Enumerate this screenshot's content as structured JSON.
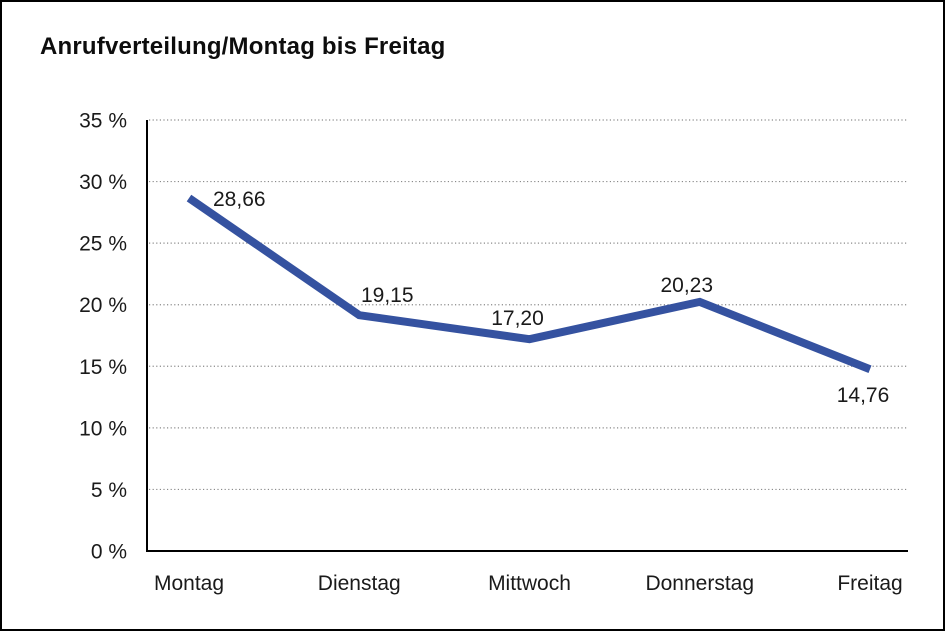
{
  "chart_data": {
    "type": "line",
    "title": "Anrufverteilung/Montag bis Freitag",
    "categories": [
      "Montag",
      "Dienstag",
      "Mittwoch",
      "Donnerstag",
      "Freitag"
    ],
    "series": [
      {
        "name": "Anrufverteilung",
        "values": [
          28.66,
          19.15,
          17.2,
          20.23,
          14.76
        ],
        "point_labels": [
          "28,66",
          "19,15",
          "17,20",
          "20,23",
          "14,76"
        ]
      }
    ],
    "xlabel": "",
    "ylabel": "",
    "ylim": [
      0,
      35
    ],
    "ytick_step": 5,
    "ytick_labels": [
      "0 %",
      "5 %",
      "10 %",
      "15 %",
      "20 %",
      "25 %",
      "30 %",
      "35 %"
    ],
    "grid": "horizontal-dotted",
    "legend_position": "none",
    "colors": {
      "line": "#3552A0",
      "grid": "#8a8a8a",
      "axis": "#000000",
      "text": "#1a1a1a",
      "background": "#ffffff",
      "border": "#000000"
    }
  }
}
